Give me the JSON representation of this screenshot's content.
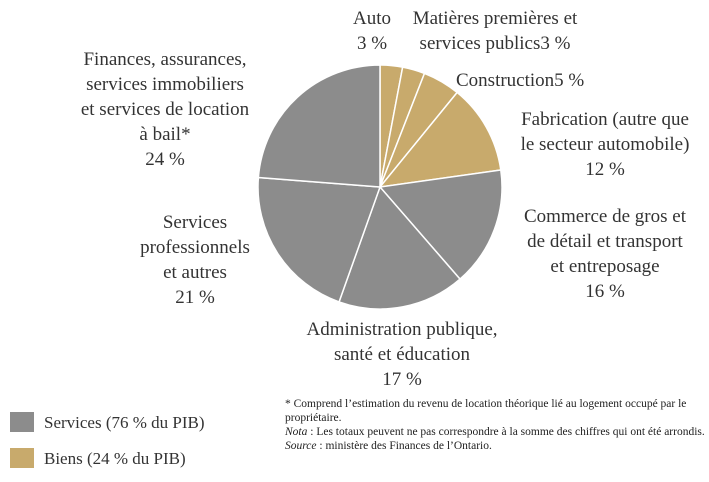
{
  "chart_data": {
    "type": "pie",
    "categories": [
      [
        "Auto"
      ],
      [
        "Matières premières et",
        "services publics"
      ],
      [
        "Construction"
      ],
      [
        "Fabrication (autre que",
        "le secteur automobile)"
      ],
      [
        "Commerce de gros et",
        "de détail et transport",
        "et entreposage"
      ],
      [
        "Administration publique,",
        "santé et éducation"
      ],
      [
        "Services",
        "professionnels",
        "et autres"
      ],
      [
        "Finances, assurances,",
        "services immobiliers",
        "et services de location",
        "à bail*"
      ]
    ],
    "values": [
      3,
      3,
      5,
      12,
      16,
      17,
      21,
      24
    ],
    "value_labels": [
      "3 %",
      "3 %",
      "5 %",
      "12 %",
      "16 %",
      "17 %",
      "21 %",
      "24 %"
    ],
    "colors": [
      "#c8aa6c",
      "#c8aa6c",
      "#c8aa6c",
      "#c8aa6c",
      "#8c8c8c",
      "#8c8c8c",
      "#8c8c8c",
      "#8c8c8c"
    ],
    "legend": [
      {
        "label": "Services (76 % du PIB)",
        "color": "#8c8c8c"
      },
      {
        "label": "Biens (24 % du PIB)",
        "color": "#c8aa6c"
      }
    ],
    "notes": {
      "footnote": "* Comprend l’estimation du revenu de location théorique lié au logement occupé par le propriétaire.",
      "nota_label": "Nota",
      "nota_text": " : Les totaux peuvent ne pas correspondre à la somme des chiffres qui ont été arrondis.",
      "source_label": "Source",
      "source_text": " : ministère des Finances de l’Ontario."
    }
  }
}
